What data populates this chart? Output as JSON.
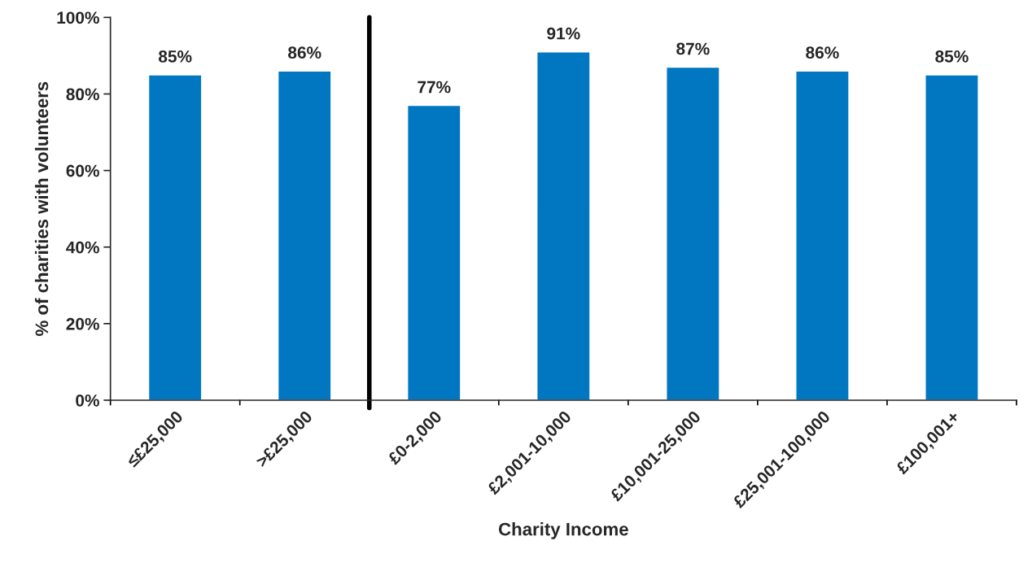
{
  "chart_data": {
    "type": "bar",
    "xlabel": "Charity Income",
    "ylabel": "% of charities with volunteers",
    "categories": [
      "≤£25,000",
      ">£25,000",
      "£0-2,000",
      "£2,001-10,000",
      "£10,001-25,000",
      "£25,001-100,000",
      "£100,001+"
    ],
    "values": [
      85,
      86,
      77,
      91,
      87,
      86,
      85
    ],
    "value_labels": [
      "85%",
      "86%",
      "77%",
      "91%",
      "87%",
      "86%",
      "85%"
    ],
    "color": "#0077c0",
    "ylim": [
      0,
      100
    ],
    "yticks": [
      {
        "value": 0,
        "label": "0%"
      },
      {
        "value": 20,
        "label": "20%"
      },
      {
        "value": 40,
        "label": "40%"
      },
      {
        "value": 60,
        "label": "60%"
      },
      {
        "value": 80,
        "label": "80%"
      },
      {
        "value": 100,
        "label": "100%"
      }
    ],
    "grid": false
  }
}
